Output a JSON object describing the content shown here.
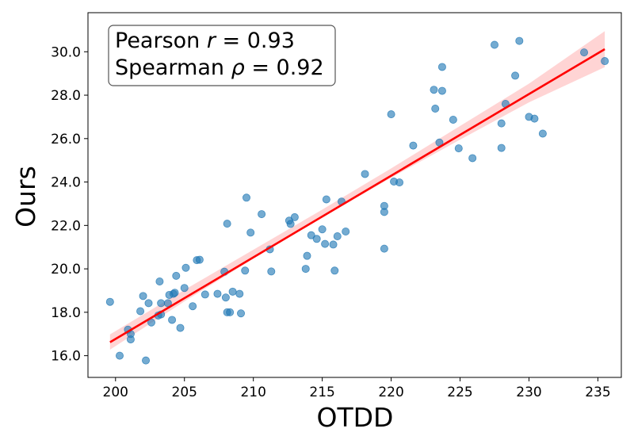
{
  "chart_data": {
    "type": "scatter",
    "title": "",
    "xlabel": "OTDD",
    "ylabel": "Ours",
    "xlim": [
      198,
      236.7
    ],
    "ylim": [
      15.0,
      31.8
    ],
    "xticks": [
      200,
      205,
      210,
      215,
      220,
      225,
      230,
      235
    ],
    "yticks": [
      16.0,
      18.0,
      20.0,
      22.0,
      24.0,
      26.0,
      28.0,
      30.0
    ],
    "xtick_labels": [
      "200",
      "205",
      "210",
      "215",
      "220",
      "225",
      "230",
      "235"
    ],
    "ytick_labels": [
      "16.0",
      "18.0",
      "20.0",
      "22.0",
      "24.0",
      "26.0",
      "28.0",
      "30.0"
    ],
    "grid": false,
    "annotation": {
      "line1_prefix": "Pearson ",
      "line1_var": "r",
      "line1_suffix": " = 0.93",
      "line2_prefix": "Spearman ",
      "line2_var": "ρ",
      "line2_suffix": " = 0.92",
      "placement": "top-left"
    },
    "point_color": "#1f77b4",
    "fit_color": "#ff0000",
    "band_color": "#ffcccc",
    "fit_line": {
      "x": [
        199.6,
        235.5
      ],
      "y": [
        16.62,
        30.12
      ]
    },
    "confidence_band": {
      "x": [
        199.6,
        205,
        210,
        215,
        220,
        225,
        230,
        235.5
      ],
      "lower": [
        16.28,
        18.5,
        20.47,
        22.37,
        24.2,
        25.95,
        27.67,
        29.29
      ],
      "upper": [
        16.98,
        19.03,
        20.88,
        22.73,
        24.63,
        26.58,
        28.53,
        30.95
      ]
    },
    "points": [
      {
        "x": 199.6,
        "y": 18.48
      },
      {
        "x": 200.3,
        "y": 16.0
      },
      {
        "x": 200.9,
        "y": 17.2
      },
      {
        "x": 201.1,
        "y": 17.0
      },
      {
        "x": 201.1,
        "y": 16.75
      },
      {
        "x": 201.8,
        "y": 18.05
      },
      {
        "x": 202.0,
        "y": 18.75
      },
      {
        "x": 202.2,
        "y": 15.78
      },
      {
        "x": 202.4,
        "y": 18.42
      },
      {
        "x": 202.6,
        "y": 17.53
      },
      {
        "x": 203.1,
        "y": 17.85
      },
      {
        "x": 203.2,
        "y": 19.42
      },
      {
        "x": 203.3,
        "y": 18.42
      },
      {
        "x": 203.3,
        "y": 17.9
      },
      {
        "x": 203.8,
        "y": 18.42
      },
      {
        "x": 203.9,
        "y": 18.8
      },
      {
        "x": 204.1,
        "y": 17.65
      },
      {
        "x": 204.2,
        "y": 18.85
      },
      {
        "x": 204.3,
        "y": 18.9
      },
      {
        "x": 204.4,
        "y": 19.68
      },
      {
        "x": 204.7,
        "y": 17.28
      },
      {
        "x": 205.0,
        "y": 19.12
      },
      {
        "x": 205.1,
        "y": 20.05
      },
      {
        "x": 205.6,
        "y": 18.28
      },
      {
        "x": 205.9,
        "y": 20.4
      },
      {
        "x": 206.1,
        "y": 20.42
      },
      {
        "x": 206.5,
        "y": 18.82
      },
      {
        "x": 207.4,
        "y": 18.85
      },
      {
        "x": 207.9,
        "y": 19.87
      },
      {
        "x": 208.0,
        "y": 18.68
      },
      {
        "x": 208.1,
        "y": 22.08
      },
      {
        "x": 208.1,
        "y": 18.0
      },
      {
        "x": 208.3,
        "y": 18.0
      },
      {
        "x": 208.5,
        "y": 18.95
      },
      {
        "x": 209.0,
        "y": 18.85
      },
      {
        "x": 209.1,
        "y": 17.95
      },
      {
        "x": 209.4,
        "y": 19.92
      },
      {
        "x": 209.5,
        "y": 23.28
      },
      {
        "x": 209.8,
        "y": 21.67
      },
      {
        "x": 210.6,
        "y": 22.52
      },
      {
        "x": 211.2,
        "y": 20.9
      },
      {
        "x": 211.3,
        "y": 19.88
      },
      {
        "x": 212.6,
        "y": 22.22
      },
      {
        "x": 212.7,
        "y": 22.07
      },
      {
        "x": 213.0,
        "y": 22.38
      },
      {
        "x": 213.8,
        "y": 20.0
      },
      {
        "x": 213.9,
        "y": 20.6
      },
      {
        "x": 214.2,
        "y": 21.55
      },
      {
        "x": 214.6,
        "y": 21.38
      },
      {
        "x": 215.0,
        "y": 21.82
      },
      {
        "x": 215.2,
        "y": 21.15
      },
      {
        "x": 215.3,
        "y": 23.2
      },
      {
        "x": 215.8,
        "y": 21.12
      },
      {
        "x": 215.9,
        "y": 19.92
      },
      {
        "x": 216.1,
        "y": 21.5
      },
      {
        "x": 216.4,
        "y": 23.1
      },
      {
        "x": 216.7,
        "y": 21.72
      },
      {
        "x": 218.1,
        "y": 24.37
      },
      {
        "x": 219.5,
        "y": 22.9
      },
      {
        "x": 219.5,
        "y": 22.62
      },
      {
        "x": 219.5,
        "y": 20.93
      },
      {
        "x": 220.0,
        "y": 27.12
      },
      {
        "x": 220.2,
        "y": 24.02
      },
      {
        "x": 220.6,
        "y": 23.98
      },
      {
        "x": 221.6,
        "y": 25.68
      },
      {
        "x": 223.1,
        "y": 28.25
      },
      {
        "x": 223.2,
        "y": 27.38
      },
      {
        "x": 223.5,
        "y": 25.82
      },
      {
        "x": 223.7,
        "y": 29.3
      },
      {
        "x": 223.7,
        "y": 28.2
      },
      {
        "x": 224.5,
        "y": 26.87
      },
      {
        "x": 224.9,
        "y": 25.55
      },
      {
        "x": 225.9,
        "y": 25.1
      },
      {
        "x": 227.5,
        "y": 30.32
      },
      {
        "x": 228.0,
        "y": 26.7
      },
      {
        "x": 228.0,
        "y": 25.57
      },
      {
        "x": 228.3,
        "y": 27.6
      },
      {
        "x": 229.0,
        "y": 28.9
      },
      {
        "x": 229.3,
        "y": 30.5
      },
      {
        "x": 230.0,
        "y": 27.0
      },
      {
        "x": 230.4,
        "y": 26.92
      },
      {
        "x": 231.0,
        "y": 26.23
      },
      {
        "x": 234.0,
        "y": 29.97
      },
      {
        "x": 235.5,
        "y": 29.57
      }
    ]
  }
}
